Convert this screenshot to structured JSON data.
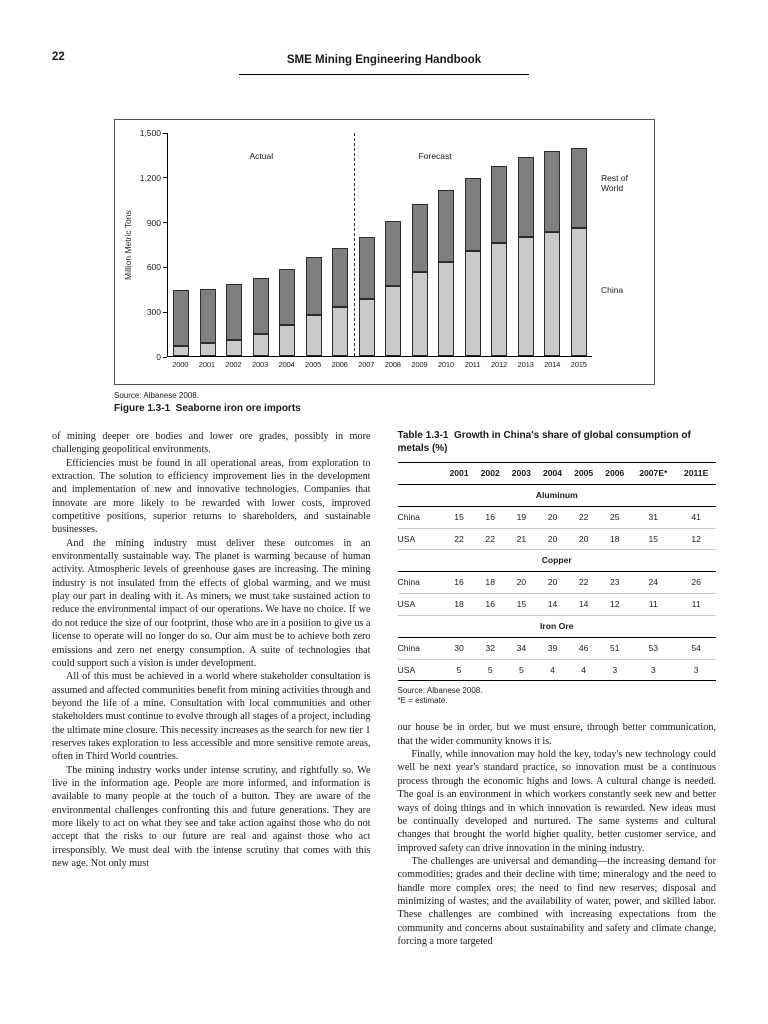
{
  "page": {
    "number": "22",
    "header_title": "SME Mining Engineering Handbook"
  },
  "figure": {
    "source": "Source: Albanese 2008.",
    "caption": "Figure 1.3-1  Seaborne iron ore imports"
  },
  "chart_data": {
    "type": "bar",
    "stacked": true,
    "title": "",
    "xlabel": "",
    "ylabel": "Million Metric Tons",
    "ylim": [
      0,
      1500
    ],
    "yticks": [
      {
        "label": "1,500",
        "value": 1500
      },
      {
        "label": "1,200",
        "value": 1200
      },
      {
        "label": "900",
        "value": 900
      },
      {
        "label": "600",
        "value": 600
      },
      {
        "label": "300",
        "value": 300
      },
      {
        "label": "0",
        "value": 0
      }
    ],
    "categories": [
      "2000",
      "2001",
      "2002",
      "2003",
      "2004",
      "2005",
      "2006",
      "2007",
      "2008",
      "2009",
      "2010",
      "2011",
      "2012",
      "2013",
      "2014",
      "2015"
    ],
    "series": [
      {
        "name": "China",
        "color": "#c9c9c9",
        "values": [
          70,
          90,
          110,
          150,
          210,
          275,
          325,
          385,
          470,
          560,
          630,
          700,
          760,
          800,
          830,
          860
        ]
      },
      {
        "name": "Rest of World",
        "color": "#7f7f7f",
        "values": [
          370,
          360,
          370,
          370,
          370,
          385,
          395,
          415,
          435,
          460,
          480,
          490,
          510,
          530,
          540,
          530
        ]
      }
    ],
    "annotations": {
      "actual": "Actual",
      "forecast": "Forecast",
      "divider_between": [
        "2006",
        "2007"
      ]
    },
    "legend_position": "right-inside"
  },
  "left_column": {
    "paragraphs": [
      "of mining deeper ore bodies and lower ore grades, possibly in more challenging geopolitical environments.",
      "Efficiencies must be found in all operational areas, from exploration to extraction. The solution to efficiency improvement lies in the development and implementation of new and innovative technologies. Companies that innovate are more likely to be rewarded with lower costs, improved competitive positions, superior returns to shareholders, and sustainable businesses.",
      "And the mining industry must deliver these outcomes in an environmentally sustainable way. The planet is warming because of human activity. Atmospheric levels of greenhouse gases are increasing. The mining industry is not insulated from the effects of global warming, and we must play our part in dealing with it. As miners, we must take sustained action to reduce the environmental impact of our operations. We have no choice. If we do not reduce the size of our footprint, those who are in a position to give us a license to operate will no longer do so. Our aim must be to achieve both zero emissions and zero net energy consumption. A suite of technologies that could support such a vision is under development.",
      "All of this must be achieved in a world where stakeholder consultation is assumed and affected communities benefit from mining activities through and beyond the life of a mine. Consultation with local communities and other stakeholders must continue to evolve through all stages of a project, including the ultimate mine closure. This necessity increases as the search for new tier 1 reserves takes exploration to less accessible and more sensitive remote areas, often in Third World countries.",
      "The mining industry works under intense scrutiny, and rightfully so. We live in the information age. People are more informed, and information is available to many people at the touch of a button. They are aware of the environmental challenges confronting this and future generations. They are more likely to act on what they see and take action against those who do not accept that the risks to our future are real and against those who act irresponsibly. We must deal with the intense scrutiny that comes with this new age. Not only must"
    ]
  },
  "table": {
    "title": "Table 1.3-1  Growth in China's share of global consumption of metals (%)",
    "columns": [
      "",
      "2001",
      "2002",
      "2003",
      "2004",
      "2005",
      "2006",
      "2007E*",
      "2011E"
    ],
    "sections": [
      {
        "name": "Aluminum",
        "rows": [
          {
            "label": "China",
            "values": [
              15,
              16,
              19,
              20,
              22,
              25,
              31,
              41
            ]
          },
          {
            "label": "USA",
            "values": [
              22,
              22,
              21,
              20,
              20,
              18,
              15,
              12
            ]
          }
        ]
      },
      {
        "name": "Copper",
        "rows": [
          {
            "label": "China",
            "values": [
              16,
              18,
              20,
              20,
              22,
              23,
              24,
              26
            ]
          },
          {
            "label": "USA",
            "values": [
              18,
              16,
              15,
              14,
              14,
              12,
              11,
              11
            ]
          }
        ]
      },
      {
        "name": "Iron Ore",
        "rows": [
          {
            "label": "China",
            "values": [
              30,
              32,
              34,
              39,
              46,
              51,
              53,
              54
            ]
          },
          {
            "label": "USA",
            "values": [
              5,
              5,
              5,
              4,
              4,
              3,
              3,
              3
            ]
          }
        ]
      }
    ],
    "source": "Source: Albanese 2008.",
    "note": "*E = estimate."
  },
  "right_column": {
    "paragraphs": [
      "our house be in order, but we must ensure, through better communication, that the wider community knows it is.",
      "Finally, while innovation may hold the key, today's new technology could well be next year's standard practice, so innovation must be a continuous process through the economic highs and lows. A cultural change is needed. The goal is an environment in which workers constantly seek new and better ways of doing things and in which innovation is rewarded. New ideas must be continually developed and nurtured. The same systems and cultural changes that brought the world higher quality, better customer service, and improved safety can drive innovation in the mining industry.",
      "The challenges are universal and demanding—the increasing demand for commodities; grades and their decline with time; mineralogy and the need to handle more complex ores; the need to find new reserves; disposal and minimizing of wastes; and the availability of water, power, and skilled labor. These challenges are combined with increasing expectations from the community and concerns about sustainability and safety and climate change, forcing a more targeted"
    ]
  }
}
